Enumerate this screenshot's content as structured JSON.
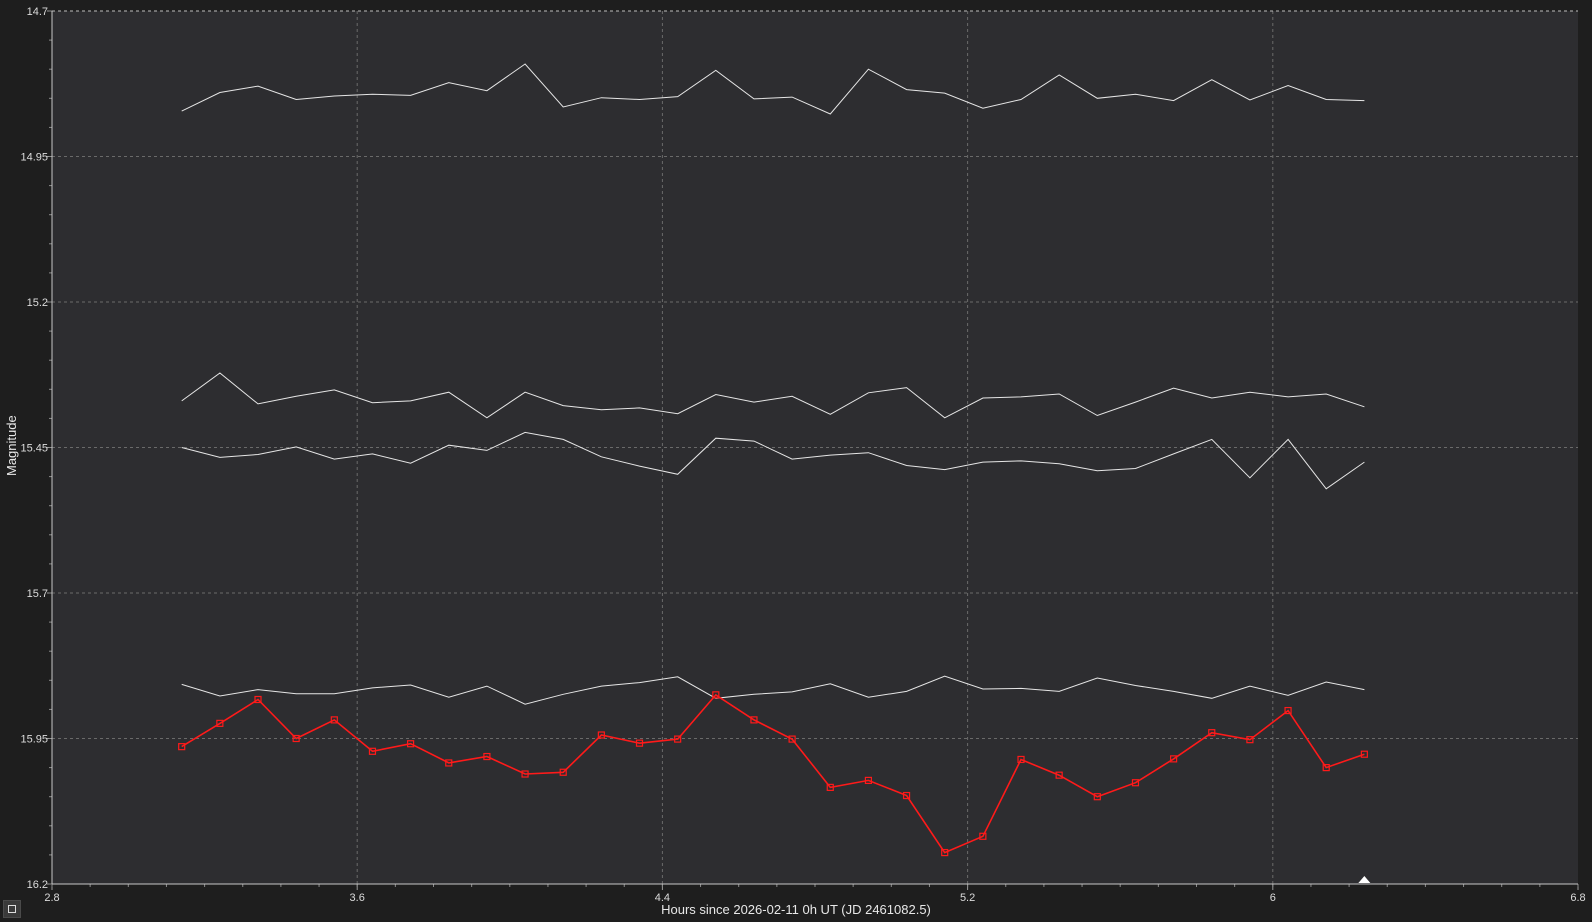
{
  "chart_data": {
    "type": "line",
    "xlabel": "Hours since 2026-02-11 0h UT (JD 2461082.5)",
    "ylabel": "Magnitude",
    "xlim": [
      2.8,
      6.8
    ],
    "ylim": [
      14.7,
      16.2
    ],
    "y_inverted": true,
    "xticks": [
      "2.8",
      "3.6",
      "4.4",
      "5.2",
      "6",
      "6.8"
    ],
    "yticks": [
      "14.7",
      "14.95",
      "15.2",
      "15.45",
      "15.7",
      "15.95",
      "16.2"
    ],
    "grid": true,
    "colors": {
      "background": "#2d2d30",
      "grid": "#6a6a6a",
      "comparison": "#e6e6e6",
      "target": "#ff1a1a"
    },
    "x": [
      3.14,
      3.24,
      3.34,
      3.44,
      3.54,
      3.64,
      3.74,
      3.84,
      3.94,
      4.04,
      4.14,
      4.24,
      4.34,
      4.44,
      4.54,
      4.64,
      4.74,
      4.84,
      4.94,
      5.04,
      5.14,
      5.24,
      5.34,
      5.44,
      5.54,
      5.64,
      5.74,
      5.84,
      5.94,
      6.04,
      6.14,
      6.24
    ],
    "series": [
      {
        "style": "plain",
        "values": [
          14.872,
          14.84,
          14.829,
          14.852,
          14.846,
          14.843,
          14.845,
          14.823,
          14.837,
          14.791,
          14.865,
          14.849,
          14.852,
          14.847,
          14.802,
          14.851,
          14.848,
          14.877,
          14.8,
          14.835,
          14.841,
          14.867,
          14.852,
          14.81,
          14.85,
          14.843,
          14.854,
          14.818,
          14.853,
          14.828,
          14.852,
          14.854
        ]
      },
      {
        "style": "plain",
        "values": [
          15.37,
          15.322,
          15.375,
          15.362,
          15.351,
          15.373,
          15.37,
          15.355,
          15.399,
          15.355,
          15.378,
          15.385,
          15.382,
          15.392,
          15.359,
          15.372,
          15.362,
          15.393,
          15.356,
          15.347,
          15.399,
          15.365,
          15.363,
          15.358,
          15.395,
          15.372,
          15.348,
          15.365,
          15.355,
          15.363,
          15.358,
          15.38
        ]
      },
      {
        "style": "plain",
        "values": [
          15.45,
          15.467,
          15.462,
          15.449,
          15.47,
          15.461,
          15.477,
          15.446,
          15.455,
          15.424,
          15.436,
          15.466,
          15.482,
          15.496,
          15.434,
          15.439,
          15.47,
          15.463,
          15.459,
          15.481,
          15.488,
          15.475,
          15.473,
          15.478,
          15.49,
          15.486,
          15.461,
          15.436,
          15.502,
          15.436,
          15.521,
          15.475
        ]
      },
      {
        "style": "plain",
        "values": [
          15.857,
          15.877,
          15.866,
          15.873,
          15.873,
          15.863,
          15.858,
          15.879,
          15.86,
          15.891,
          15.874,
          15.86,
          15.854,
          15.844,
          15.881,
          15.874,
          15.87,
          15.856,
          15.879,
          15.869,
          15.843,
          15.865,
          15.864,
          15.869,
          15.846,
          15.859,
          15.869,
          15.881,
          15.86,
          15.876,
          15.853,
          15.866
        ]
      },
      {
        "style": "target",
        "values": [
          15.964,
          15.924,
          15.883,
          15.95,
          15.918,
          15.972,
          15.959,
          15.992,
          15.981,
          16.011,
          16.008,
          15.944,
          15.958,
          15.951,
          15.875,
          15.918,
          15.951,
          16.034,
          16.022,
          16.048,
          16.146,
          16.118,
          15.986,
          16.013,
          16.05,
          16.026,
          15.985,
          15.94,
          15.952,
          15.902,
          16.0,
          15.977
        ]
      }
    ]
  }
}
